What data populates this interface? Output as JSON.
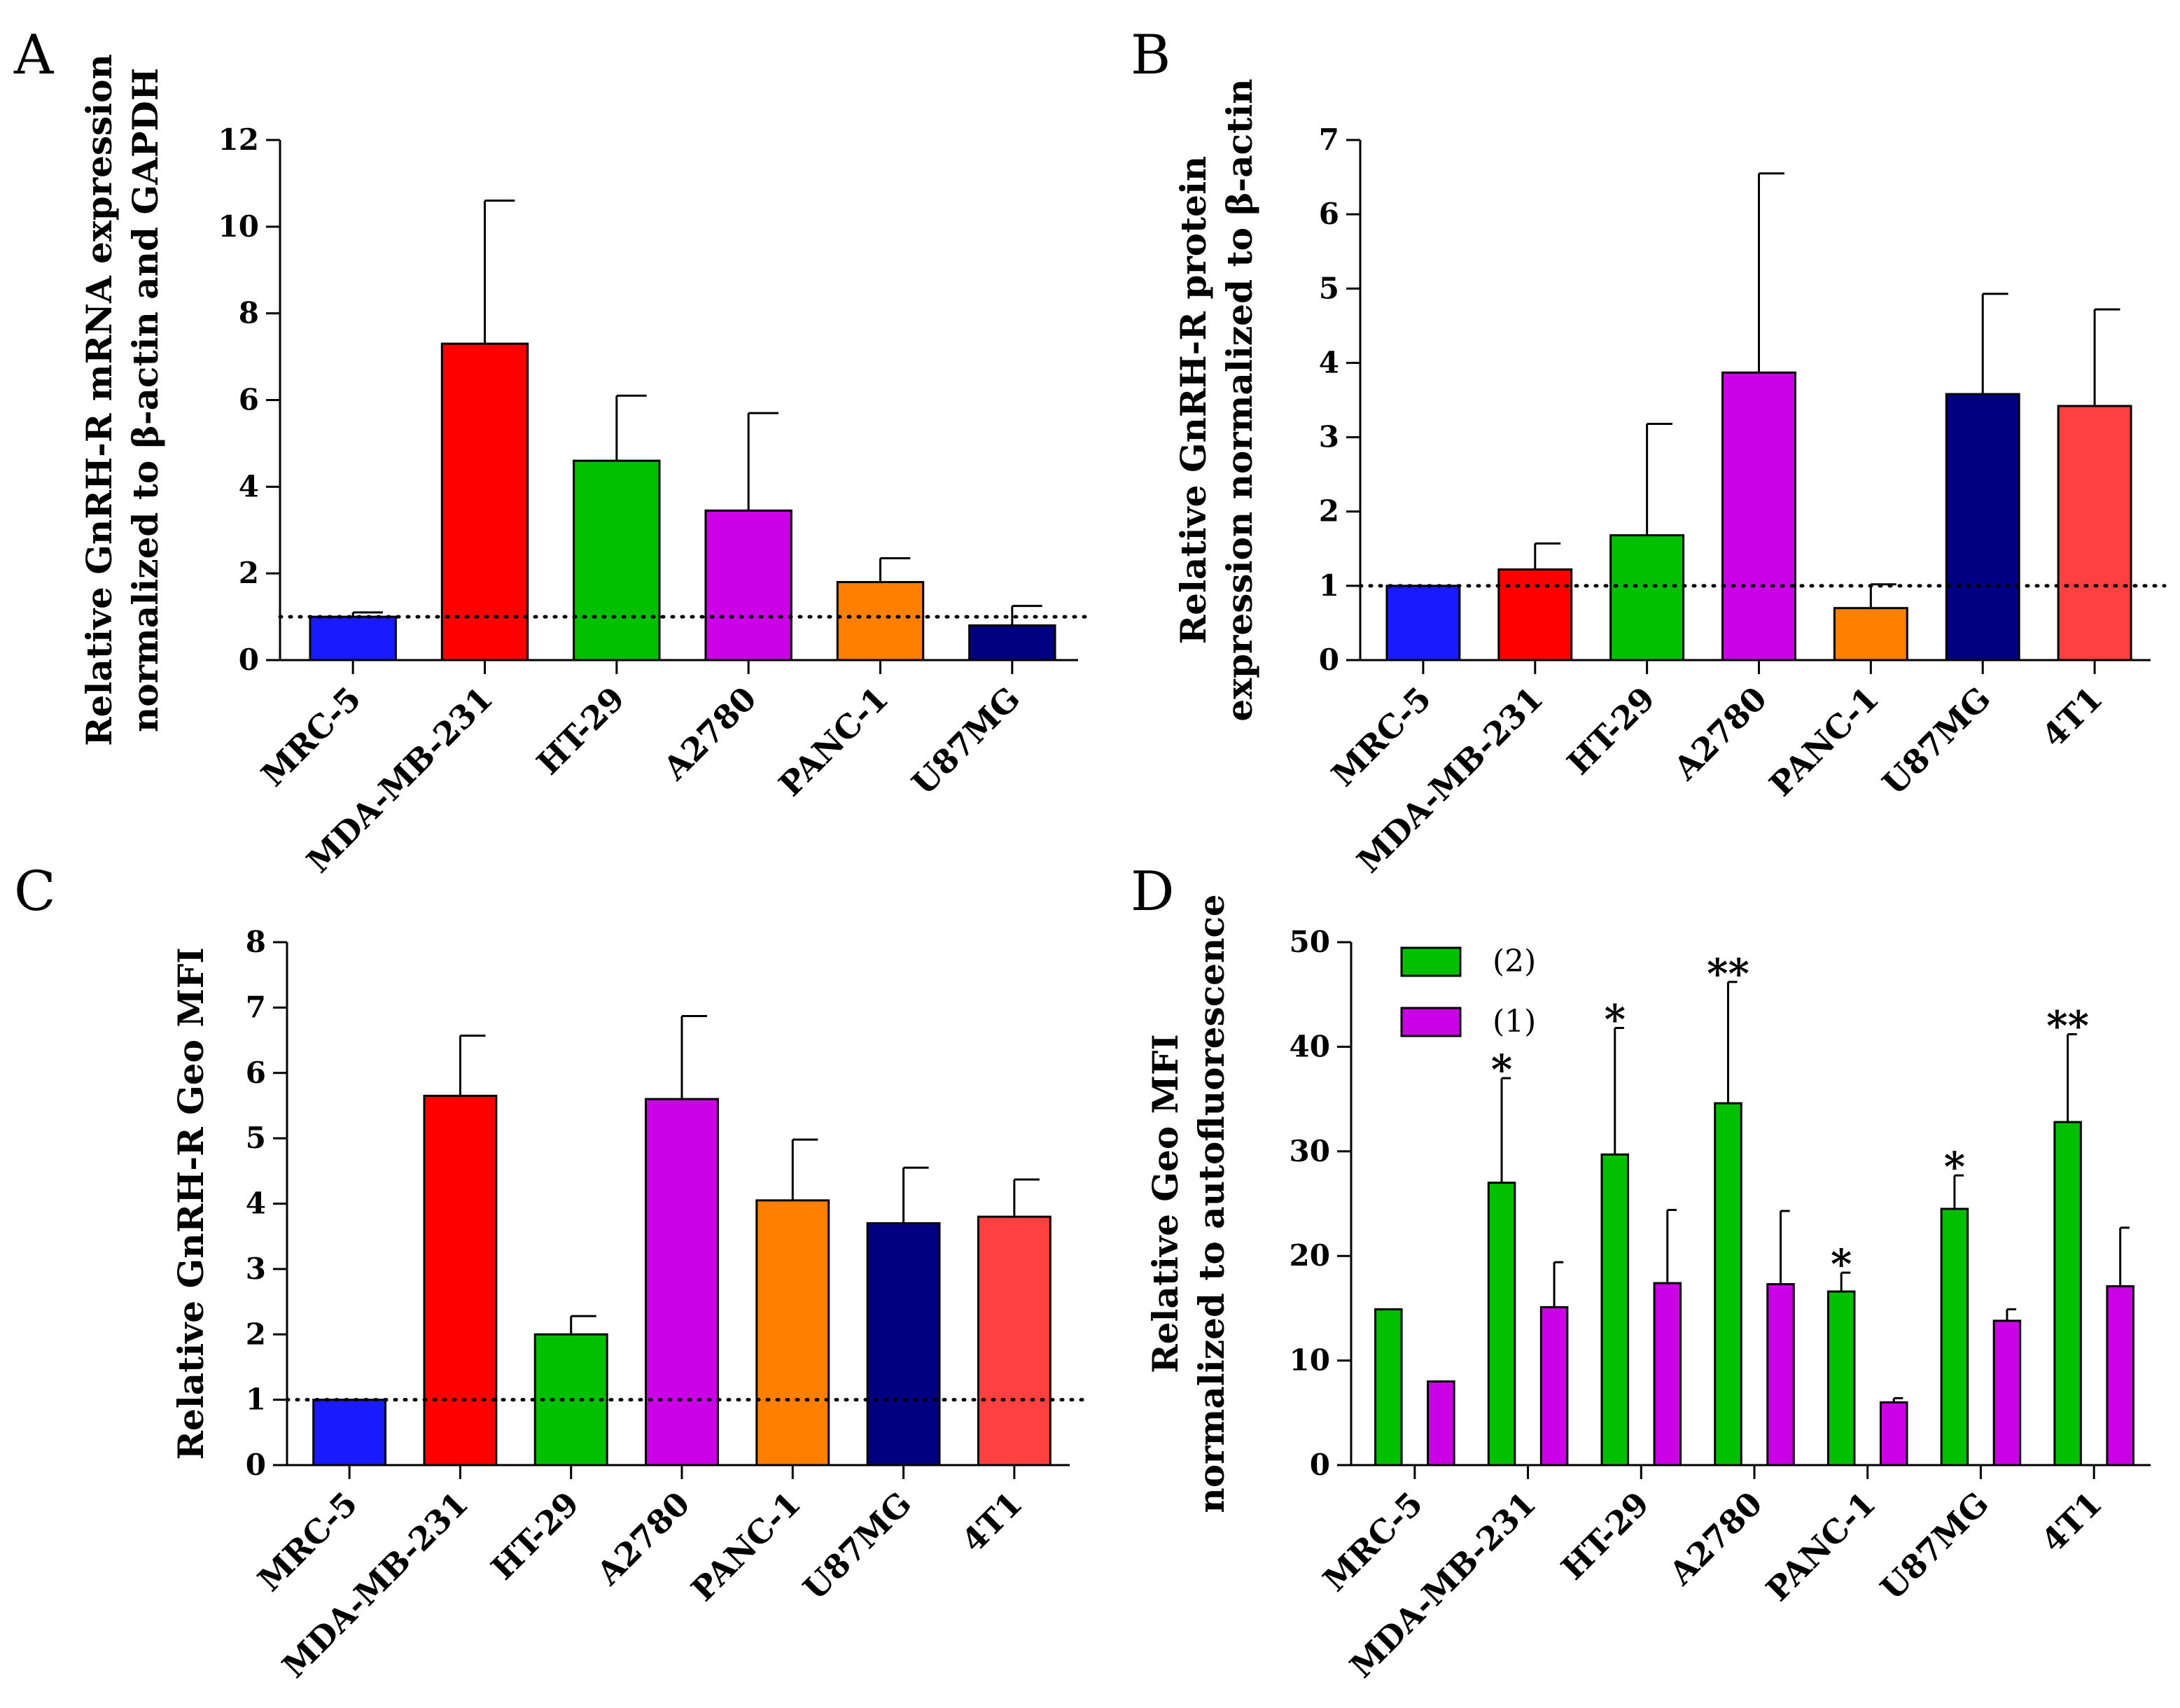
{
  "chart_data": [
    {
      "panel": "A",
      "type": "bar",
      "ylabel": [
        "Relative GnRH-R mRNA expression",
        "normalized to β-actin and GAPDH"
      ],
      "ylim": [
        0,
        12
      ],
      "yticks": [
        0,
        2,
        4,
        6,
        8,
        10,
        12
      ],
      "reference_line": 1,
      "categories": [
        "MRC-5",
        "MDA-MB-231",
        "HT-29",
        "A2780",
        "PANC-1",
        "U87MG"
      ],
      "series": [
        {
          "name": "GnRH-R mRNA",
          "values": [
            1.0,
            7.3,
            4.6,
            3.45,
            1.8,
            0.8
          ],
          "errors": [
            0.1,
            3.3,
            1.5,
            2.25,
            0.55,
            0.45
          ],
          "colors": [
            "#1a1aff",
            "#ff0000",
            "#00c000",
            "#cc00e6",
            "#ff8000",
            "#000080"
          ]
        }
      ]
    },
    {
      "panel": "B",
      "type": "bar",
      "ylabel": [
        "Relative GnRH-R protein",
        "expression normalized to β-actin"
      ],
      "ylim": [
        0,
        7
      ],
      "yticks": [
        0,
        1,
        2,
        3,
        4,
        5,
        6,
        7
      ],
      "reference_line": 1,
      "categories": [
        "MRC-5",
        "MDA-MB-231",
        "HT-29",
        "A2780",
        "PANC-1",
        "U87MG",
        "4T1"
      ],
      "series": [
        {
          "name": "GnRH-R protein",
          "values": [
            1.0,
            1.22,
            1.68,
            3.87,
            0.7,
            3.58,
            3.42
          ],
          "errors": [
            0.0,
            0.35,
            1.5,
            2.68,
            0.32,
            1.35,
            1.3
          ],
          "colors": [
            "#1a1aff",
            "#ff0000",
            "#00c000",
            "#cc00e6",
            "#ff8000",
            "#000080",
            "#ff4040"
          ]
        }
      ]
    },
    {
      "panel": "C",
      "type": "bar",
      "ylabel": [
        "Relative GnRH-R Geo MFI"
      ],
      "ylim": [
        0,
        8
      ],
      "yticks": [
        0,
        1,
        2,
        3,
        4,
        5,
        6,
        7,
        8
      ],
      "reference_line": 1,
      "categories": [
        "MRC-5",
        "MDA-MB-231",
        "HT-29",
        "A2780",
        "PANC-1",
        "U87MG",
        "4T1"
      ],
      "series": [
        {
          "name": "GnRH-R Geo MFI",
          "values": [
            1.0,
            5.65,
            2.0,
            5.6,
            4.05,
            3.7,
            3.8
          ],
          "errors": [
            0.0,
            0.92,
            0.28,
            1.27,
            0.93,
            0.85,
            0.57
          ],
          "colors": [
            "#1a1aff",
            "#ff0000",
            "#00c000",
            "#cc00e6",
            "#ff8000",
            "#000080",
            "#ff4040"
          ]
        }
      ]
    },
    {
      "panel": "D",
      "type": "bar",
      "ylabel": [
        "Relative Geo MFI",
        "normalized to autofluorescence"
      ],
      "ylim": [
        0,
        50
      ],
      "yticks": [
        0,
        10,
        20,
        30,
        40,
        50
      ],
      "legend_position": "top-left",
      "categories": [
        "MRC-5",
        "MDA-MB-231",
        "HT-29",
        "A2780",
        "PANC-1",
        "U87MG",
        "4T1"
      ],
      "series": [
        {
          "name": "(2)",
          "color": "#00c000",
          "values": [
            14.9,
            27.0,
            29.7,
            34.6,
            16.6,
            24.5,
            32.8
          ],
          "errors": [
            0.0,
            10.0,
            12.1,
            11.6,
            1.8,
            3.2,
            8.4
          ],
          "significance": [
            "",
            "*",
            "*",
            "**",
            "*",
            "*",
            "**"
          ]
        },
        {
          "name": "(1)",
          "color": "#cc00e6",
          "values": [
            8.0,
            15.1,
            17.4,
            17.3,
            6.0,
            13.8,
            17.1
          ],
          "errors": [
            0.0,
            4.3,
            7.0,
            7.0,
            0.4,
            1.1,
            5.6
          ],
          "significance": [
            "",
            "",
            "",
            "",
            "",
            "",
            ""
          ]
        }
      ]
    }
  ]
}
